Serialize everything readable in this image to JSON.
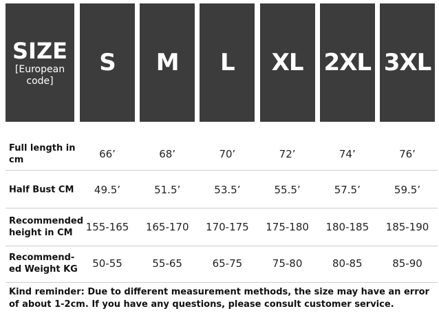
{
  "header": {
    "title": "SIZE",
    "subtitle": "[European code]",
    "sizes": [
      "S",
      "M",
      "L",
      "XL",
      "2XL",
      "3XL"
    ]
  },
  "rows": [
    {
      "label": "Full length in cm",
      "values": [
        "66’",
        "68’",
        "70’",
        "72’",
        "74’",
        "76’"
      ]
    },
    {
      "label": "Half Bust CM",
      "values": [
        "49.5’",
        "51.5’",
        "53.5’",
        "55.5’",
        "57.5’",
        "59.5’"
      ]
    },
    {
      "label": "Recommended height in CM",
      "values": [
        "155-165",
        "165-170",
        "170-175",
        "175-180",
        "180-185",
        "185-190"
      ]
    },
    {
      "label": "Recommend-ed Weight KG",
      "values": [
        "50-55",
        "55-65",
        "65-75",
        "75-80",
        "80-85",
        "85-90"
      ]
    }
  ],
  "note": "Kind reminder: Due to different measurement methods, the size may have an error of about 1-2cm. If you have any questions, please consult customer service."
}
